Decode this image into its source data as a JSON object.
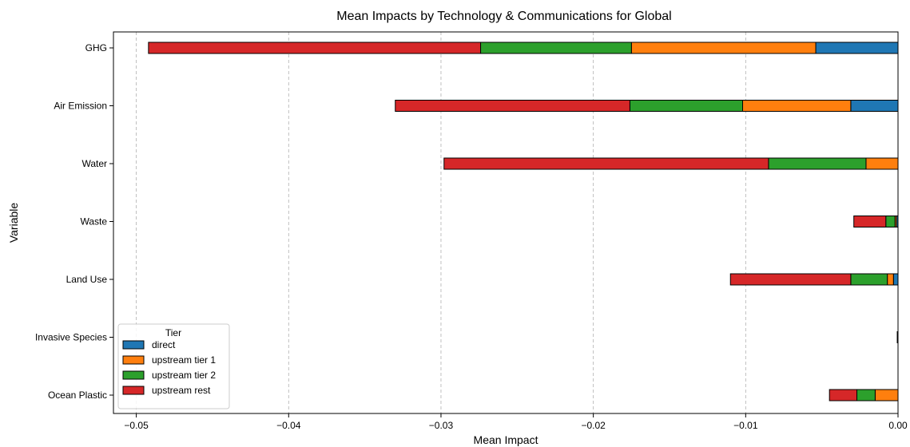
{
  "chart_data": {
    "type": "bar",
    "orientation": "horizontal",
    "stacked": true,
    "title": "Mean Impacts by Technology & Communications for Global",
    "xlabel": "Mean Impact",
    "ylabel": "Variable",
    "xlim": [
      -0.0515,
      0.0
    ],
    "x_ticks": [
      -0.05,
      -0.04,
      -0.03,
      -0.02,
      -0.01,
      0.0
    ],
    "x_tick_labels": [
      "−0.05",
      "−0.04",
      "−0.03",
      "−0.02",
      "−0.01",
      "0.00"
    ],
    "grid": "vertical dashed",
    "legend_title": "Tier",
    "legend_position": "lower-left",
    "categories": [
      "GHG",
      "Air Emission",
      "Water",
      "Waste",
      "Land Use",
      "Invasive Species",
      "Ocean Plastic"
    ],
    "series": [
      {
        "name": "direct",
        "color": "#1f77b4",
        "values": [
          -0.0054,
          -0.0031,
          0.0,
          -0.0001,
          -0.0003,
          -5e-05,
          0.0
        ]
      },
      {
        "name": "upstream tier 1",
        "color": "#ff7f0e",
        "values": [
          -0.0121,
          -0.0071,
          -0.0021,
          -0.0001,
          -0.0004,
          0.0,
          -0.0015
        ]
      },
      {
        "name": "upstream tier 2",
        "color": "#2ca02c",
        "values": [
          -0.0099,
          -0.0074,
          -0.0064,
          -0.0006,
          -0.0024,
          0.0,
          -0.0012
        ]
      },
      {
        "name": "upstream rest",
        "color": "#d62728",
        "values": [
          -0.0218,
          -0.0154,
          -0.0213,
          -0.0021,
          -0.0079,
          0.0,
          -0.0018
        ]
      }
    ]
  }
}
